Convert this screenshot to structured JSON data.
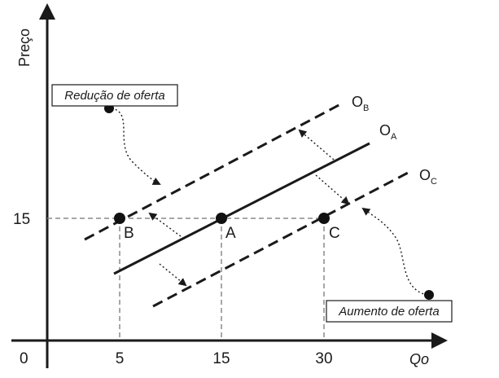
{
  "axes": {
    "y_title": "Preço",
    "x_title": "Qo",
    "origin": "0",
    "x_ticks": [
      "5",
      "15",
      "30"
    ],
    "y_ticks": [
      "15"
    ]
  },
  "curves": {
    "b": {
      "letter": "O",
      "sub": "B"
    },
    "a": {
      "letter": "O",
      "sub": "A"
    },
    "c": {
      "letter": "O",
      "sub": "C"
    }
  },
  "points": {
    "a": "A",
    "b": "B",
    "c": "C"
  },
  "notes": {
    "reduction": "Redução de oferta",
    "increase": "Aumento de oferta"
  }
}
